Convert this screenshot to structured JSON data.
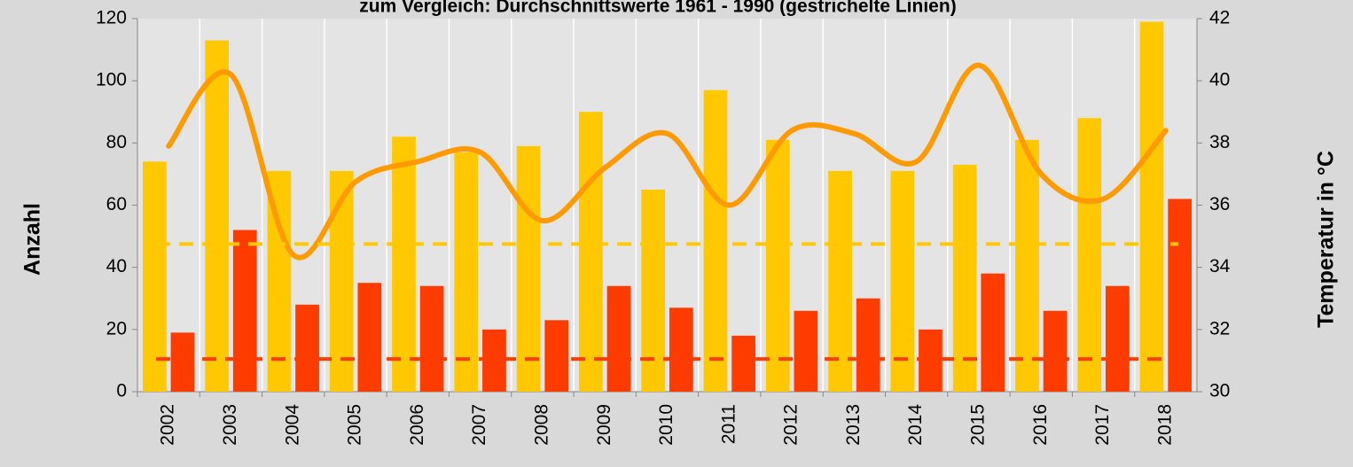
{
  "chart_data": {
    "type": "bar_line",
    "title": "zum Vergleich: Durchschnittswerte 1961 - 1990 (gestrichelte Linien)",
    "y_label": "Anzahl",
    "y2_label": "Temperatur in °C",
    "categories": [
      "2002",
      "2003",
      "2004",
      "2005",
      "2006",
      "2007",
      "2008",
      "2009",
      "2010",
      "2011",
      "2012",
      "2013",
      "2014",
      "2015",
      "2016",
      "2017",
      "2018"
    ],
    "series": [
      {
        "type": "bar",
        "color": "#ffc800",
        "values": [
          74,
          113,
          71,
          71,
          82,
          77,
          79,
          90,
          65,
          97,
          81,
          71,
          71,
          73,
          81,
          88,
          119
        ]
      },
      {
        "type": "bar",
        "color": "#ff3c00",
        "values": [
          19,
          52,
          28,
          35,
          34,
          20,
          23,
          34,
          27,
          18,
          26,
          30,
          20,
          38,
          26,
          34,
          62
        ]
      },
      {
        "type": "line",
        "axis": "y2",
        "color": "#ff9a00",
        "values": [
          37.9,
          40.2,
          34.4,
          36.75,
          37.4,
          37.7,
          35.5,
          37.2,
          38.3,
          36.0,
          38.4,
          38.3,
          37.4,
          40.5,
          37.0,
          36.2,
          38.4
        ]
      }
    ],
    "reference_lines": [
      {
        "value": 47.5,
        "color": "#ffc800"
      },
      {
        "value": 10.5,
        "color": "#ff3c00"
      }
    ],
    "ylim": [
      0,
      120
    ],
    "yticks": [
      0,
      20,
      40,
      60,
      80,
      100,
      120
    ],
    "y2lim": [
      30,
      42
    ],
    "y2ticks": [
      30,
      32,
      34,
      36,
      38,
      40,
      42
    ]
  }
}
